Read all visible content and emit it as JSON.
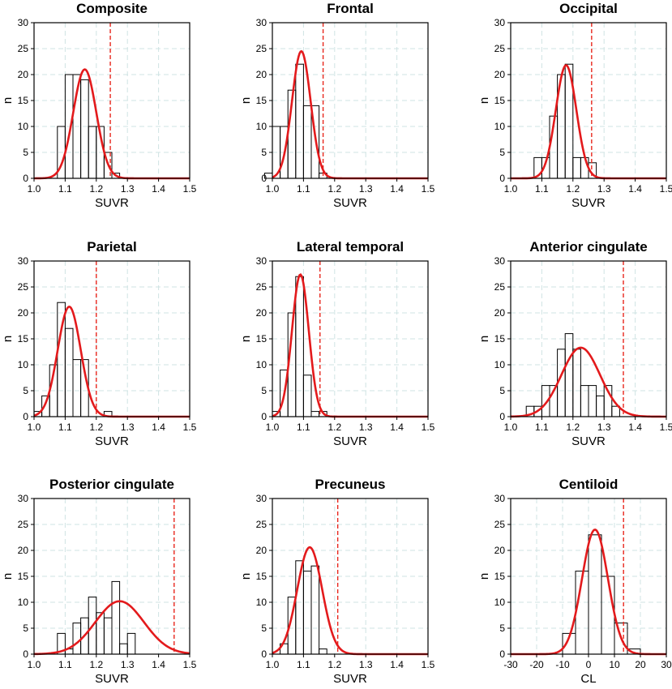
{
  "chart_data": [
    {
      "type": "histogram",
      "title": "Composite",
      "xlabel": "SUVR",
      "ylabel": "n",
      "xlim": [
        1.0,
        1.5
      ],
      "ylim": [
        0,
        30
      ],
      "xticks": [
        "1.0",
        "1.1",
        "1.2",
        "1.3",
        "1.4",
        "1.5"
      ],
      "yticks": [
        "0",
        "5",
        "10",
        "15",
        "20",
        "25",
        "30"
      ],
      "grid": true,
      "bins": [
        {
          "start": 1.075,
          "end": 1.1,
          "count": 10
        },
        {
          "start": 1.1,
          "end": 1.125,
          "count": 20
        },
        {
          "start": 1.125,
          "end": 1.15,
          "count": 20
        },
        {
          "start": 1.15,
          "end": 1.175,
          "count": 19
        },
        {
          "start": 1.175,
          "end": 1.2,
          "count": 10
        },
        {
          "start": 1.2,
          "end": 1.225,
          "count": 10
        },
        {
          "start": 1.225,
          "end": 1.25,
          "count": 5
        },
        {
          "start": 1.25,
          "end": 1.275,
          "count": 1
        }
      ],
      "fit": {
        "mean": 1.163,
        "sd": 0.037,
        "peak": 21.0
      },
      "threshold": 1.245
    },
    {
      "type": "histogram",
      "title": "Frontal",
      "xlabel": "SUVR",
      "ylabel": "n",
      "xlim": [
        1.0,
        1.5
      ],
      "ylim": [
        0,
        30
      ],
      "xticks": [
        "1.0",
        "1.1",
        "1.2",
        "1.3",
        "1.4",
        "1.5"
      ],
      "yticks": [
        "0",
        "5",
        "10",
        "15",
        "20",
        "25",
        "30"
      ],
      "grid": true,
      "bins": [
        {
          "start": 0.975,
          "end": 1.0,
          "count": 1
        },
        {
          "start": 1.0,
          "end": 1.025,
          "count": 10
        },
        {
          "start": 1.025,
          "end": 1.05,
          "count": 10
        },
        {
          "start": 1.05,
          "end": 1.075,
          "count": 17
        },
        {
          "start": 1.075,
          "end": 1.1,
          "count": 22
        },
        {
          "start": 1.1,
          "end": 1.125,
          "count": 14
        },
        {
          "start": 1.125,
          "end": 1.15,
          "count": 14
        },
        {
          "start": 1.15,
          "end": 1.175,
          "count": 1
        }
      ],
      "fit": {
        "mean": 1.093,
        "sd": 0.03,
        "peak": 24.5
      },
      "threshold": 1.163
    },
    {
      "type": "histogram",
      "title": "Occipital",
      "xlabel": "SUVR",
      "ylabel": "n",
      "xlim": [
        1.0,
        1.5
      ],
      "ylim": [
        0,
        30
      ],
      "xticks": [
        "1.0",
        "1.1",
        "1.2",
        "1.3",
        "1.4",
        "1.5"
      ],
      "yticks": [
        "0",
        "5",
        "10",
        "15",
        "20",
        "25",
        "30"
      ],
      "grid": true,
      "bins": [
        {
          "start": 1.075,
          "end": 1.1,
          "count": 4
        },
        {
          "start": 1.1,
          "end": 1.125,
          "count": 4
        },
        {
          "start": 1.125,
          "end": 1.15,
          "count": 12
        },
        {
          "start": 1.15,
          "end": 1.175,
          "count": 20
        },
        {
          "start": 1.175,
          "end": 1.2,
          "count": 22
        },
        {
          "start": 1.2,
          "end": 1.225,
          "count": 4
        },
        {
          "start": 1.225,
          "end": 1.25,
          "count": 4
        },
        {
          "start": 1.25,
          "end": 1.275,
          "count": 3
        }
      ],
      "fit": {
        "mean": 1.178,
        "sd": 0.033,
        "peak": 21.8
      },
      "threshold": 1.26
    },
    {
      "type": "histogram",
      "title": "Parietal",
      "xlabel": "SUVR",
      "ylabel": "n",
      "xlim": [
        1.0,
        1.5
      ],
      "ylim": [
        0,
        30
      ],
      "xticks": [
        "1.0",
        "1.1",
        "1.2",
        "1.3",
        "1.4",
        "1.5"
      ],
      "yticks": [
        "0",
        "5",
        "10",
        "15",
        "20",
        "25",
        "30"
      ],
      "grid": true,
      "bins": [
        {
          "start": 1.0,
          "end": 1.025,
          "count": 1
        },
        {
          "start": 1.025,
          "end": 1.05,
          "count": 4
        },
        {
          "start": 1.05,
          "end": 1.075,
          "count": 10
        },
        {
          "start": 1.075,
          "end": 1.1,
          "count": 22
        },
        {
          "start": 1.1,
          "end": 1.125,
          "count": 17
        },
        {
          "start": 1.125,
          "end": 1.15,
          "count": 11
        },
        {
          "start": 1.15,
          "end": 1.175,
          "count": 11
        },
        {
          "start": 1.225,
          "end": 1.25,
          "count": 1
        }
      ],
      "fit": {
        "mean": 1.113,
        "sd": 0.037,
        "peak": 21.2
      },
      "threshold": 1.2
    },
    {
      "type": "histogram",
      "title": "Lateral temporal",
      "xlabel": "SUVR",
      "ylabel": "n",
      "xlim": [
        1.0,
        1.5
      ],
      "ylim": [
        0,
        30
      ],
      "xticks": [
        "1.0",
        "1.1",
        "1.2",
        "1.3",
        "1.4",
        "1.5"
      ],
      "yticks": [
        "0",
        "5",
        "10",
        "15",
        "20",
        "25",
        "30"
      ],
      "grid": true,
      "bins": [
        {
          "start": 1.0,
          "end": 1.025,
          "count": 1
        },
        {
          "start": 1.025,
          "end": 1.05,
          "count": 9
        },
        {
          "start": 1.05,
          "end": 1.075,
          "count": 20
        },
        {
          "start": 1.075,
          "end": 1.1,
          "count": 27
        },
        {
          "start": 1.1,
          "end": 1.125,
          "count": 8
        },
        {
          "start": 1.125,
          "end": 1.15,
          "count": 1
        },
        {
          "start": 1.15,
          "end": 1.175,
          "count": 1
        }
      ],
      "fit": {
        "mean": 1.09,
        "sd": 0.027,
        "peak": 27.4
      },
      "threshold": 1.153
    },
    {
      "type": "histogram",
      "title": "Anterior cingulate",
      "xlabel": "SUVR",
      "ylabel": "n",
      "xlim": [
        1.0,
        1.5
      ],
      "ylim": [
        0,
        30
      ],
      "xticks": [
        "1.0",
        "1.1",
        "1.2",
        "1.3",
        "1.4",
        "1.5"
      ],
      "yticks": [
        "0",
        "5",
        "10",
        "15",
        "20",
        "25",
        "30"
      ],
      "grid": true,
      "bins": [
        {
          "start": 1.05,
          "end": 1.075,
          "count": 2
        },
        {
          "start": 1.075,
          "end": 1.1,
          "count": 2
        },
        {
          "start": 1.1,
          "end": 1.125,
          "count": 6
        },
        {
          "start": 1.125,
          "end": 1.15,
          "count": 6
        },
        {
          "start": 1.15,
          "end": 1.175,
          "count": 13
        },
        {
          "start": 1.175,
          "end": 1.2,
          "count": 16
        },
        {
          "start": 1.2,
          "end": 1.225,
          "count": 13
        },
        {
          "start": 1.225,
          "end": 1.25,
          "count": 6
        },
        {
          "start": 1.25,
          "end": 1.275,
          "count": 6
        },
        {
          "start": 1.275,
          "end": 1.3,
          "count": 4
        },
        {
          "start": 1.3,
          "end": 1.325,
          "count": 6
        },
        {
          "start": 1.325,
          "end": 1.35,
          "count": 2
        }
      ],
      "fit": {
        "mean": 1.225,
        "sd": 0.062,
        "peak": 13.3
      },
      "threshold": 1.362
    },
    {
      "type": "histogram",
      "title": "Posterior cingulate",
      "xlabel": "SUVR",
      "ylabel": "n",
      "xlim": [
        1.0,
        1.5
      ],
      "ylim": [
        0,
        30
      ],
      "xticks": [
        "1.0",
        "1.1",
        "1.2",
        "1.3",
        "1.4",
        "1.5"
      ],
      "yticks": [
        "0",
        "5",
        "10",
        "15",
        "20",
        "25",
        "30"
      ],
      "grid": true,
      "bins": [
        {
          "start": 1.075,
          "end": 1.1,
          "count": 4
        },
        {
          "start": 1.1,
          "end": 1.125,
          "count": 1
        },
        {
          "start": 1.125,
          "end": 1.15,
          "count": 6
        },
        {
          "start": 1.15,
          "end": 1.175,
          "count": 7
        },
        {
          "start": 1.175,
          "end": 1.2,
          "count": 11
        },
        {
          "start": 1.2,
          "end": 1.225,
          "count": 8
        },
        {
          "start": 1.225,
          "end": 1.25,
          "count": 7
        },
        {
          "start": 1.25,
          "end": 1.275,
          "count": 14
        },
        {
          "start": 1.275,
          "end": 1.3,
          "count": 2
        },
        {
          "start": 1.3,
          "end": 1.325,
          "count": 4
        }
      ],
      "fit": {
        "mean": 1.275,
        "sd": 0.078,
        "peak": 10.2
      },
      "threshold": 1.45
    },
    {
      "type": "histogram",
      "title": "Precuneus",
      "xlabel": "SUVR",
      "ylabel": "n",
      "xlim": [
        1.0,
        1.5
      ],
      "ylim": [
        0,
        30
      ],
      "xticks": [
        "1.0",
        "1.1",
        "1.2",
        "1.3",
        "1.4",
        "1.5"
      ],
      "yticks": [
        "0",
        "5",
        "10",
        "15",
        "20",
        "25",
        "30"
      ],
      "grid": true,
      "bins": [
        {
          "start": 1.025,
          "end": 1.05,
          "count": 2
        },
        {
          "start": 1.05,
          "end": 1.075,
          "count": 11
        },
        {
          "start": 1.075,
          "end": 1.1,
          "count": 18
        },
        {
          "start": 1.1,
          "end": 1.125,
          "count": 16
        },
        {
          "start": 1.125,
          "end": 1.15,
          "count": 17
        },
        {
          "start": 1.15,
          "end": 1.175,
          "count": 1
        }
      ],
      "fit": {
        "mean": 1.12,
        "sd": 0.04,
        "peak": 20.6
      },
      "threshold": 1.21
    },
    {
      "type": "histogram",
      "title": "Centiloid",
      "xlabel": "CL",
      "ylabel": "n",
      "xlim": [
        -30,
        30
      ],
      "ylim": [
        0,
        30
      ],
      "xticks": [
        "-30",
        "-20",
        "-10",
        "0",
        "10",
        "20",
        "30"
      ],
      "yticks": [
        "0",
        "5",
        "10",
        "15",
        "20",
        "25",
        "30"
      ],
      "grid": true,
      "bins": [
        {
          "start": -10,
          "end": -5,
          "count": 4
        },
        {
          "start": -5,
          "end": 0,
          "count": 16
        },
        {
          "start": 0,
          "end": 5,
          "count": 23
        },
        {
          "start": 5,
          "end": 10,
          "count": 15
        },
        {
          "start": 10,
          "end": 15,
          "count": 6
        },
        {
          "start": 15,
          "end": 20,
          "count": 1
        }
      ],
      "fit": {
        "mean": 2.5,
        "sd": 5.0,
        "peak": 24.0
      },
      "threshold": 13.5
    }
  ]
}
